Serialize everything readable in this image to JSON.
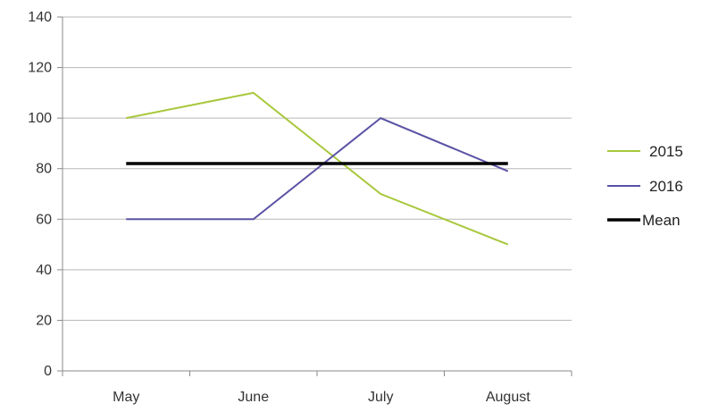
{
  "chart_data": {
    "type": "line",
    "title": "",
    "xlabel": "",
    "ylabel": "",
    "categories": [
      "May",
      "June",
      "July",
      "August"
    ],
    "ylim": [
      0,
      140
    ],
    "yticks": [
      0,
      20,
      40,
      60,
      80,
      100,
      120,
      140
    ],
    "grid": true,
    "legend_position": "right",
    "series": [
      {
        "name": "2015",
        "values": [
          100,
          110,
          70,
          50
        ],
        "color": "#a8c83c"
      },
      {
        "name": "2016",
        "values": [
          60,
          60,
          100,
          79
        ],
        "color": "#5a52a4"
      },
      {
        "name": "Mean",
        "values": [
          82,
          82,
          82,
          82
        ],
        "color": "#000000"
      }
    ]
  }
}
